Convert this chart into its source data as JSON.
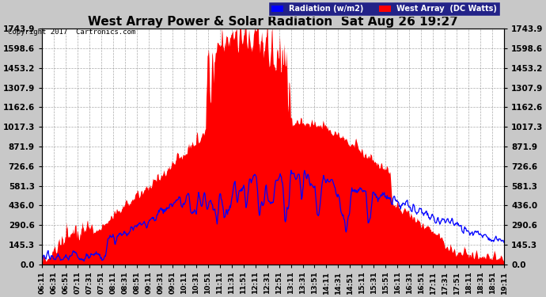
{
  "title": "West Array Power & Solar Radiation  Sat Aug 26 19:27",
  "copyright": "Copyright 2017  Cartronics.com",
  "legend_radiation": "Radiation (w/m2)",
  "legend_west": "West Array  (DC Watts)",
  "yticks": [
    0.0,
    145.3,
    290.6,
    436.0,
    581.3,
    726.6,
    871.9,
    1017.3,
    1162.6,
    1307.9,
    1453.2,
    1598.6,
    1743.9
  ],
  "ymax": 1743.9,
  "ymin": 0.0,
  "bg_color": "#c8c8c8",
  "plot_bg_color": "#ffffff",
  "grid_color": "#888888",
  "red_color": "#ff0000",
  "blue_color": "#0000ff",
  "title_fontsize": 11,
  "tick_fontsize": 7.5,
  "xtick_labels": [
    "06:11",
    "06:31",
    "06:51",
    "07:11",
    "07:31",
    "07:51",
    "08:11",
    "08:31",
    "08:51",
    "09:11",
    "09:31",
    "09:51",
    "10:11",
    "10:31",
    "10:51",
    "11:11",
    "11:31",
    "11:51",
    "12:11",
    "12:31",
    "12:51",
    "13:11",
    "13:31",
    "13:51",
    "14:11",
    "14:31",
    "14:51",
    "15:11",
    "15:31",
    "15:51",
    "16:11",
    "16:31",
    "16:51",
    "17:11",
    "17:31",
    "17:51",
    "18:11",
    "18:31",
    "18:51",
    "19:11"
  ]
}
